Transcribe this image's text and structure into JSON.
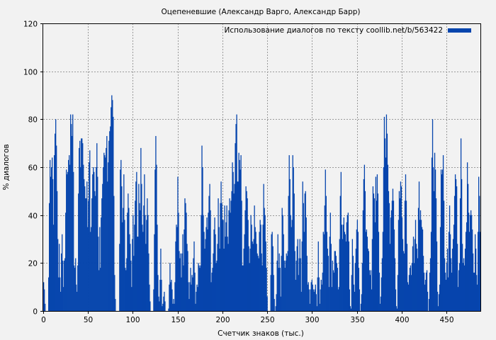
{
  "chart_data": {
    "type": "bar",
    "title": "Оцепеневшие (Александр Варго, Александр Барр)",
    "xlabel": "Счетчик знаков (тыс.)",
    "ylabel": "% диалогов",
    "xlim": [
      0,
      488
    ],
    "ylim": [
      0,
      120
    ],
    "xticks": [
      0,
      50,
      100,
      150,
      200,
      250,
      300,
      350,
      400,
      450
    ],
    "yticks": [
      0,
      20,
      40,
      60,
      80,
      100,
      120
    ],
    "grid": true,
    "legend_position": "top-right",
    "series": [
      {
        "name": "Использование диалогов по тексту coollib.net/b/563422",
        "color": "#0645ad",
        "values": [
          12,
          9,
          3,
          0,
          0,
          0,
          0,
          14,
          45,
          63,
          56,
          60,
          64,
          55,
          36,
          65,
          74,
          80,
          69,
          50,
          30,
          14,
          28,
          14,
          8,
          24,
          32,
          21,
          10,
          21,
          22,
          41,
          59,
          57,
          58,
          63,
          65,
          61,
          82,
          78,
          73,
          82,
          58,
          19,
          18,
          22,
          11,
          8,
          19,
          49,
          68,
          71,
          60,
          72,
          72,
          70,
          61,
          55,
          52,
          47,
          47,
          54,
          35,
          46,
          62,
          67,
          33,
          35,
          47,
          57,
          60,
          58,
          50,
          48,
          60,
          70,
          56,
          31,
          17,
          35,
          18,
          39,
          47,
          53,
          60,
          66,
          65,
          64,
          68,
          73,
          54,
          62,
          71,
          75,
          77,
          85,
          90,
          88,
          81,
          48,
          15,
          5,
          0,
          0,
          0,
          0,
          0,
          28,
          59,
          63,
          52,
          37,
          43,
          57,
          38,
          18,
          17,
          22,
          41,
          49,
          43,
          32,
          28,
          21,
          10,
          30,
          40,
          23,
          36,
          46,
          54,
          58,
          31,
          31,
          53,
          45,
          42,
          68,
          53,
          36,
          33,
          44,
          57,
          40,
          28,
          38,
          47,
          40,
          24,
          11,
          4,
          0,
          0,
          0,
          0,
          9,
          32,
          59,
          73,
          61,
          36,
          15,
          6,
          4,
          13,
          26,
          13,
          2,
          3,
          6,
          8,
          4,
          0,
          0,
          0,
          0,
          1,
          11,
          20,
          12,
          13,
          9,
          3,
          5,
          3,
          12,
          29,
          36,
          35,
          56,
          41,
          25,
          22,
          24,
          14,
          24,
          32,
          19,
          34,
          47,
          45,
          41,
          28,
          25,
          12,
          5,
          12,
          18,
          11,
          15,
          14,
          22,
          29,
          16,
          3,
          8,
          11,
          10,
          20,
          19,
          18,
          19,
          40,
          69,
          60,
          40,
          33,
          26,
          30,
          35,
          39,
          34,
          41,
          48,
          53,
          42,
          12,
          16,
          18,
          24,
          34,
          39,
          32,
          20,
          21,
          28,
          47,
          35,
          26,
          45,
          54,
          45,
          38,
          38,
          26,
          44,
          31,
          37,
          44,
          31,
          28,
          42,
          47,
          41,
          46,
          50,
          62,
          58,
          49,
          53,
          70,
          78,
          82,
          54,
          54,
          66,
          63,
          59,
          65,
          46,
          19,
          19,
          26,
          32,
          42,
          52,
          50,
          47,
          38,
          27,
          20,
          26,
          40,
          36,
          29,
          28,
          30,
          44,
          35,
          33,
          28,
          24,
          23,
          22,
          33,
          38,
          36,
          24,
          19,
          36,
          53,
          43,
          40,
          29,
          18,
          6,
          0,
          0,
          0,
          0,
          15,
          32,
          33,
          27,
          15,
          5,
          0,
          2,
          7,
          21,
          32,
          18,
          24,
          18,
          6,
          23,
          43,
          40,
          32,
          21,
          18,
          21,
          24,
          23,
          25,
          48,
          65,
          55,
          40,
          35,
          38,
          65,
          60,
          49,
          25,
          13,
          21,
          27,
          30,
          15,
          22,
          30,
          22,
          8,
          29,
          54,
          45,
          33,
          49,
          50,
          39,
          23,
          11,
          12,
          9,
          3,
          9,
          12,
          13,
          11,
          9,
          8,
          9,
          11,
          7,
          2,
          14,
          29,
          14,
          3,
          9,
          13,
          11,
          16,
          33,
          32,
          44,
          59,
          48,
          33,
          26,
          23,
          10,
          31,
          41,
          28,
          10,
          21,
          17,
          16,
          25,
          25,
          23,
          20,
          18,
          9,
          10,
          30,
          48,
          58,
          36,
          30,
          36,
          39,
          33,
          32,
          29,
          37,
          40,
          41,
          29,
          9,
          2,
          1,
          15,
          30,
          23,
          11,
          8,
          20,
          26,
          34,
          38,
          33,
          18,
          9,
          0,
          3,
          7,
          20,
          42,
          55,
          61,
          50,
          33,
          34,
          31,
          26,
          25,
          17,
          15,
          17,
          9,
          30,
          52,
          49,
          47,
          37,
          56,
          46,
          57,
          49,
          33,
          16,
          3,
          6,
          14,
          22,
          33,
          60,
          81,
          72,
          64,
          82,
          74,
          61,
          50,
          45,
          28,
          39,
          42,
          46,
          51,
          46,
          34,
          22,
          9,
          2,
          1,
          15,
          38,
          50,
          47,
          54,
          52,
          39,
          30,
          25,
          24,
          46,
          57,
          46,
          28,
          12,
          11,
          15,
          18,
          19,
          15,
          20,
          27,
          31,
          20,
          30,
          38,
          28,
          26,
          22,
          43,
          54,
          38,
          42,
          38,
          35,
          34,
          23,
          16,
          11,
          13,
          16,
          17,
          8,
          0,
          5,
          16,
          22,
          33,
          64,
          80,
          60,
          50,
          66,
          59,
          47,
          29,
          8,
          2,
          7,
          11,
          35,
          59,
          57,
          59,
          65,
          46,
          22,
          16,
          13,
          20,
          26,
          14,
          33,
          44,
          32,
          22,
          16,
          26,
          30,
          36,
          48,
          57,
          55,
          52,
          28,
          10,
          17,
          20,
          47,
          72,
          55,
          28,
          20,
          22,
          19,
          26,
          33,
          37,
          62,
          53,
          41,
          33,
          40,
          42,
          40,
          34,
          24,
          16,
          16,
          32,
          26,
          15,
          11,
          33,
          56,
          48,
          33
        ]
      }
    ]
  }
}
